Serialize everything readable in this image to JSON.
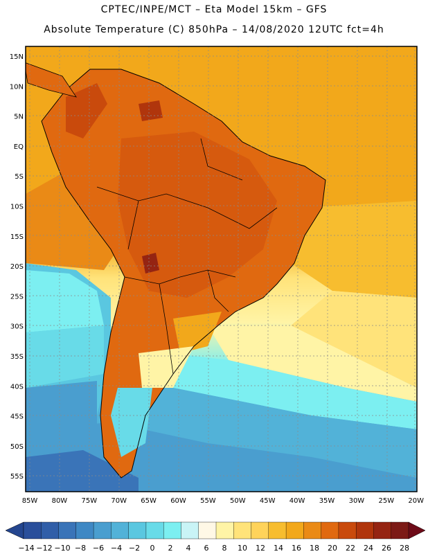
{
  "title_line1": "CPTEC/INPE/MCT –  Eta Model 15km – GFS",
  "title_line2": "Absolute Temperature (C) 850hPa – 14/08/2020 12UTC fct=4h",
  "lat_labels": [
    "15N",
    "10N",
    "5N",
    "EQ",
    "5S",
    "10S",
    "15S",
    "20S",
    "25S",
    "30S",
    "35S",
    "40S",
    "45S",
    "50S",
    "55S"
  ],
  "lon_labels": [
    "85W",
    "80W",
    "75W",
    "70W",
    "65W",
    "60W",
    "55W",
    "50W",
    "45W",
    "40W",
    "35W",
    "30W",
    "25W",
    "20W"
  ],
  "legend": {
    "labels": [
      "-14",
      "-12",
      "-10",
      "-8",
      "-6",
      "-4",
      "-2",
      "0",
      "2",
      "4",
      "6",
      "8",
      "10",
      "12",
      "14",
      "16",
      "18",
      "20",
      "22",
      "24",
      "26",
      "28"
    ],
    "low_color": "#24468f",
    "high_color": "#6e0b18",
    "colors": [
      "#2a4f9b",
      "#305ea8",
      "#3a74b8",
      "#3f88c4",
      "#4a9ecf",
      "#52b2d8",
      "#5ac7e0",
      "#68dbe8",
      "#7ceff1",
      "#c9f4f6",
      "#fff8e6",
      "#fff4a6",
      "#ffe37a",
      "#ffd35a",
      "#f7bd2f",
      "#f2a81b",
      "#ea8a16",
      "#e06910",
      "#c94a0c",
      "#b0350c",
      "#952412",
      "#7c1a16"
    ]
  }
}
